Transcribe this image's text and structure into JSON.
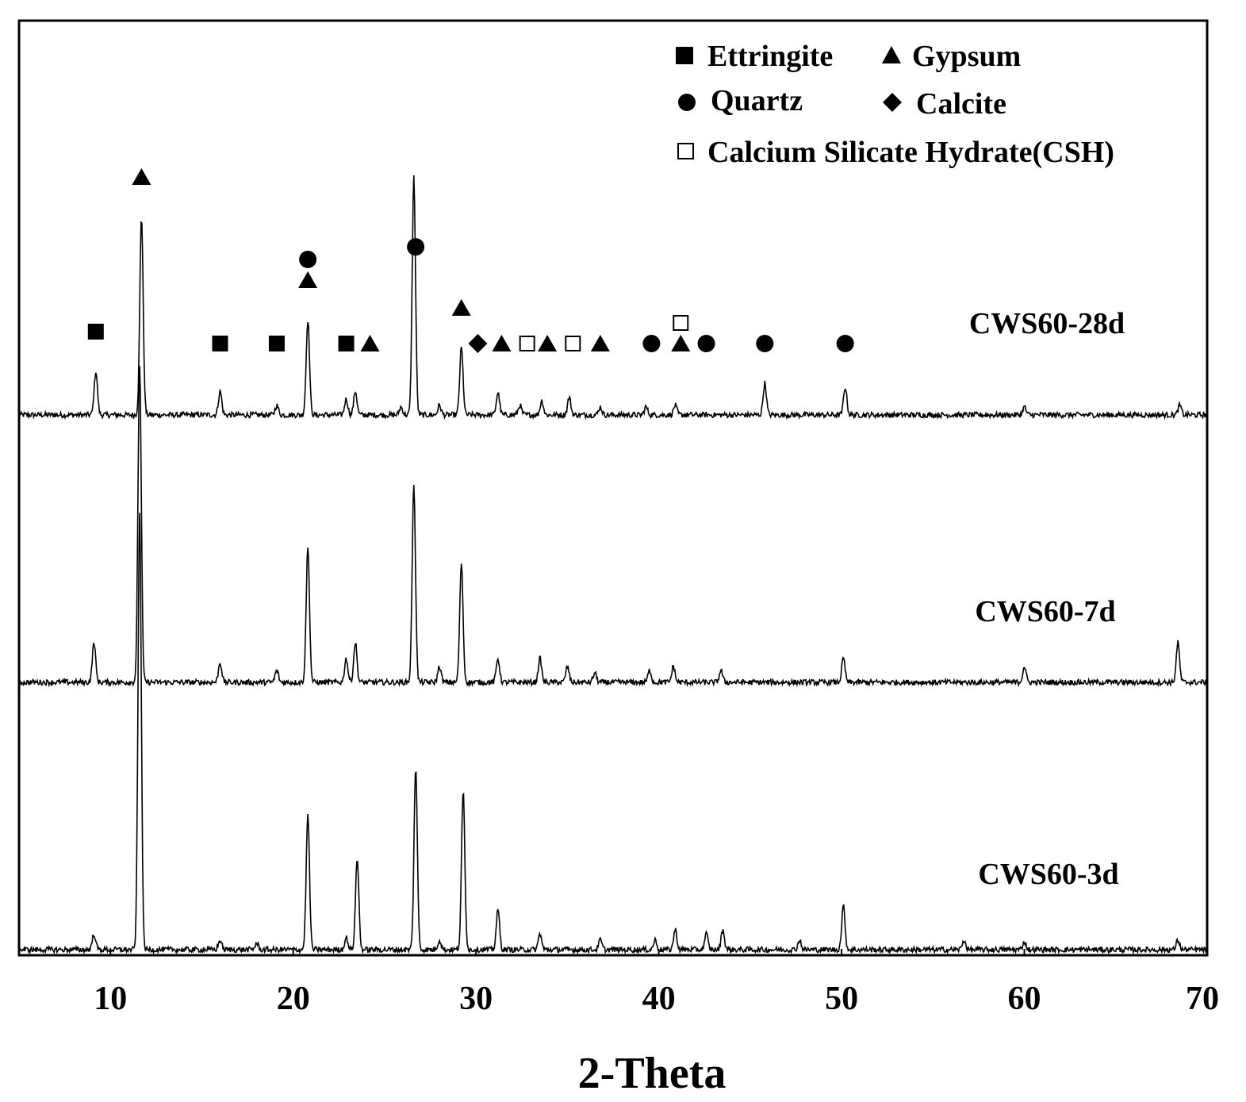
{
  "chart_data": {
    "type": "line",
    "title": "",
    "xlabel": "2-Theta",
    "ylabel": "",
    "xlim": [
      5,
      70
    ],
    "x_ticks": [
      "10",
      "20",
      "30",
      "40",
      "50",
      "60",
      "70"
    ],
    "grid": false,
    "legend_placement": "top-right",
    "legend": [
      {
        "marker": "filled-square",
        "label": "Ettringite"
      },
      {
        "marker": "filled-triangle",
        "label": "Gypsum"
      },
      {
        "marker": "filled-circle",
        "label": "Quartz"
      },
      {
        "marker": "filled-diamond",
        "label": "Calcite"
      },
      {
        "marker": "open-square",
        "label": "Calcium Silicate Hydrate(CSH)"
      }
    ],
    "series": [
      {
        "name": "CWS60-28d",
        "peaks": [
          [
            9.2,
            55
          ],
          [
            11.7,
            250
          ],
          [
            16.0,
            30
          ],
          [
            19.1,
            12
          ],
          [
            20.8,
            120
          ],
          [
            22.9,
            20
          ],
          [
            23.4,
            30
          ],
          [
            25.9,
            10
          ],
          [
            26.6,
            300
          ],
          [
            28.0,
            12
          ],
          [
            29.2,
            85
          ],
          [
            31.2,
            28
          ],
          [
            32.4,
            12
          ],
          [
            33.6,
            18
          ],
          [
            35.1,
            22
          ],
          [
            36.8,
            10
          ],
          [
            39.3,
            10
          ],
          [
            40.9,
            12
          ],
          [
            45.8,
            40
          ],
          [
            50.2,
            35
          ],
          [
            60.0,
            10
          ],
          [
            68.5,
            12
          ]
        ]
      },
      {
        "name": "CWS60-7d",
        "peaks": [
          [
            9.1,
            50
          ],
          [
            11.6,
            400
          ],
          [
            16.0,
            25
          ],
          [
            19.1,
            15
          ],
          [
            20.8,
            170
          ],
          [
            22.9,
            30
          ],
          [
            23.4,
            50
          ],
          [
            26.6,
            250
          ],
          [
            28.0,
            20
          ],
          [
            29.2,
            150
          ],
          [
            31.2,
            30
          ],
          [
            33.5,
            30
          ],
          [
            35.0,
            20
          ],
          [
            36.5,
            12
          ],
          [
            39.5,
            15
          ],
          [
            40.8,
            20
          ],
          [
            43.4,
            15
          ],
          [
            50.1,
            30
          ],
          [
            60.0,
            20
          ],
          [
            68.4,
            50
          ]
        ]
      },
      {
        "name": "CWS60-3d",
        "peaks": [
          [
            9.1,
            20
          ],
          [
            11.6,
            550
          ],
          [
            16.0,
            12
          ],
          [
            18.0,
            8
          ],
          [
            20.8,
            170
          ],
          [
            22.9,
            15
          ],
          [
            23.5,
            115
          ],
          [
            26.7,
            230
          ],
          [
            28.0,
            12
          ],
          [
            29.3,
            200
          ],
          [
            31.2,
            50
          ],
          [
            33.5,
            20
          ],
          [
            36.8,
            12
          ],
          [
            39.8,
            12
          ],
          [
            40.9,
            25
          ],
          [
            42.6,
            20
          ],
          [
            43.5,
            25
          ],
          [
            47.7,
            12
          ],
          [
            50.1,
            55
          ],
          [
            56.7,
            12
          ],
          [
            60.0,
            10
          ],
          [
            68.4,
            12
          ]
        ]
      }
    ],
    "annotations": [
      {
        "marker": "filled-square",
        "x": 9.2
      },
      {
        "marker": "filled-square",
        "x": 16.0
      },
      {
        "marker": "filled-square",
        "x": 19.1
      },
      {
        "marker": "filled-square",
        "x": 22.9
      },
      {
        "marker": "filled-triangle",
        "x": 11.7
      },
      {
        "marker": "filled-triangle",
        "x": 20.8
      },
      {
        "marker": "filled-circle",
        "x": 20.8
      },
      {
        "marker": "filled-triangle",
        "x": 24.2
      },
      {
        "marker": "filled-circle",
        "x": 26.7
      },
      {
        "marker": "filled-triangle",
        "x": 29.2
      },
      {
        "marker": "filled-diamond",
        "x": 30.1
      },
      {
        "marker": "filled-triangle",
        "x": 31.4
      },
      {
        "marker": "open-square",
        "x": 32.8
      },
      {
        "marker": "filled-triangle",
        "x": 33.9
      },
      {
        "marker": "open-square",
        "x": 35.3
      },
      {
        "marker": "filled-triangle",
        "x": 36.8
      },
      {
        "marker": "filled-circle",
        "x": 39.6
      },
      {
        "marker": "filled-triangle",
        "x": 41.2
      },
      {
        "marker": "open-square",
        "x": 41.2
      },
      {
        "marker": "filled-circle",
        "x": 42.6
      },
      {
        "marker": "filled-circle",
        "x": 45.8
      },
      {
        "marker": "filled-circle",
        "x": 50.2
      }
    ]
  }
}
